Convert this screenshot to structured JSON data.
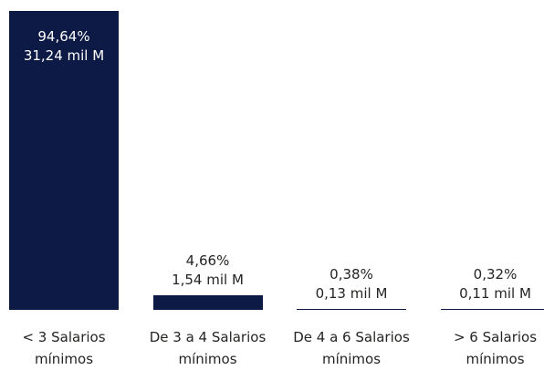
{
  "chart_data": {
    "type": "bar",
    "categories": [
      "< 3 Salarios mínimos",
      "De 3 a 4 Salarios mínimos",
      "De 4 a 6 Salarios mínimos",
      "> 6 Salarios mínimos"
    ],
    "values": [
      94.64,
      4.66,
      0.38,
      0.32
    ],
    "value_labels": [
      "94,64%",
      "4,66%",
      "0,38%",
      "0,32%"
    ],
    "amounts": [
      31.24,
      1.54,
      0.13,
      0.11
    ],
    "amount_labels": [
      "31,24 mil M",
      "1,54 mil M",
      "0,13 mil M",
      "0,11 mil M"
    ],
    "color": "#0c1a45"
  }
}
